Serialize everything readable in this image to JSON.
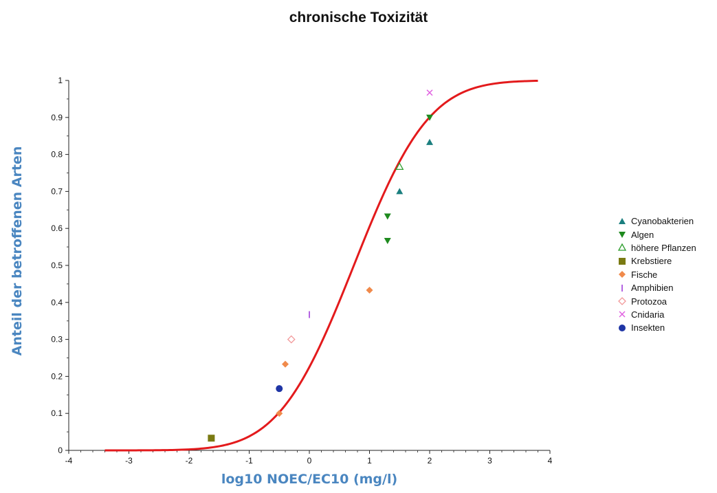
{
  "chart_data": {
    "type": "scatter",
    "title": "chronische Toxizität",
    "xlabel": "log10 NOEC/EC10 (mg/l)",
    "ylabel": "Anteil der betroffenen Arten",
    "xlim": [
      -4,
      4
    ],
    "ylim": [
      0,
      1
    ],
    "x_ticks": [
      "-4",
      "-3",
      "-2",
      "-1",
      "0",
      "1",
      "2",
      "3",
      "4"
    ],
    "y_ticks": [
      "0",
      "0.1",
      "0.2",
      "0.3",
      "0.4",
      "0.5",
      "0.6",
      "0.7",
      "0.8",
      "0.9",
      "1"
    ],
    "grid": false,
    "legend_position": "right",
    "fitted_curve": {
      "type": "cumulative log-normal",
      "color": "#e31a1c",
      "x_range": [
        -3.4,
        3.8
      ],
      "mean": 0.74,
      "sd": 0.98
    },
    "series": [
      {
        "name": "Cyanobakterien",
        "marker": "triangle-up",
        "color": "#1b7f7f",
        "points": [
          [
            1.5,
            0.7
          ],
          [
            2.0,
            0.833
          ]
        ]
      },
      {
        "name": "Algen",
        "marker": "triangle-down",
        "color": "#1e8a1e",
        "points": [
          [
            1.3,
            0.567
          ],
          [
            1.3,
            0.633
          ],
          [
            2.0,
            0.9
          ]
        ]
      },
      {
        "name": "höhere Pflanzen",
        "marker": "triangle-up-open",
        "color": "#2e9e2e",
        "points": [
          [
            1.5,
            0.767
          ]
        ]
      },
      {
        "name": "Krebstiere",
        "marker": "square",
        "color": "#7a7a12",
        "points": [
          [
            -1.63,
            0.033
          ]
        ]
      },
      {
        "name": "Fische",
        "marker": "diamond",
        "color": "#f08a4b",
        "points": [
          [
            -0.5,
            0.1
          ],
          [
            -0.4,
            0.233
          ],
          [
            1.0,
            0.433
          ]
        ]
      },
      {
        "name": "Amphibien",
        "marker": "vline",
        "color": "#9b30d9",
        "points": [
          [
            0.0,
            0.367
          ]
        ]
      },
      {
        "name": "Protozoa",
        "marker": "diamond-open",
        "color": "#f2999a",
        "points": [
          [
            -0.3,
            0.3
          ]
        ]
      },
      {
        "name": "Cnidaria",
        "marker": "x",
        "color": "#e060e0",
        "points": [
          [
            2.0,
            0.967
          ]
        ]
      },
      {
        "name": "Insekten",
        "marker": "circle",
        "color": "#1f35a5",
        "points": [
          [
            -0.5,
            0.167
          ]
        ]
      }
    ]
  }
}
